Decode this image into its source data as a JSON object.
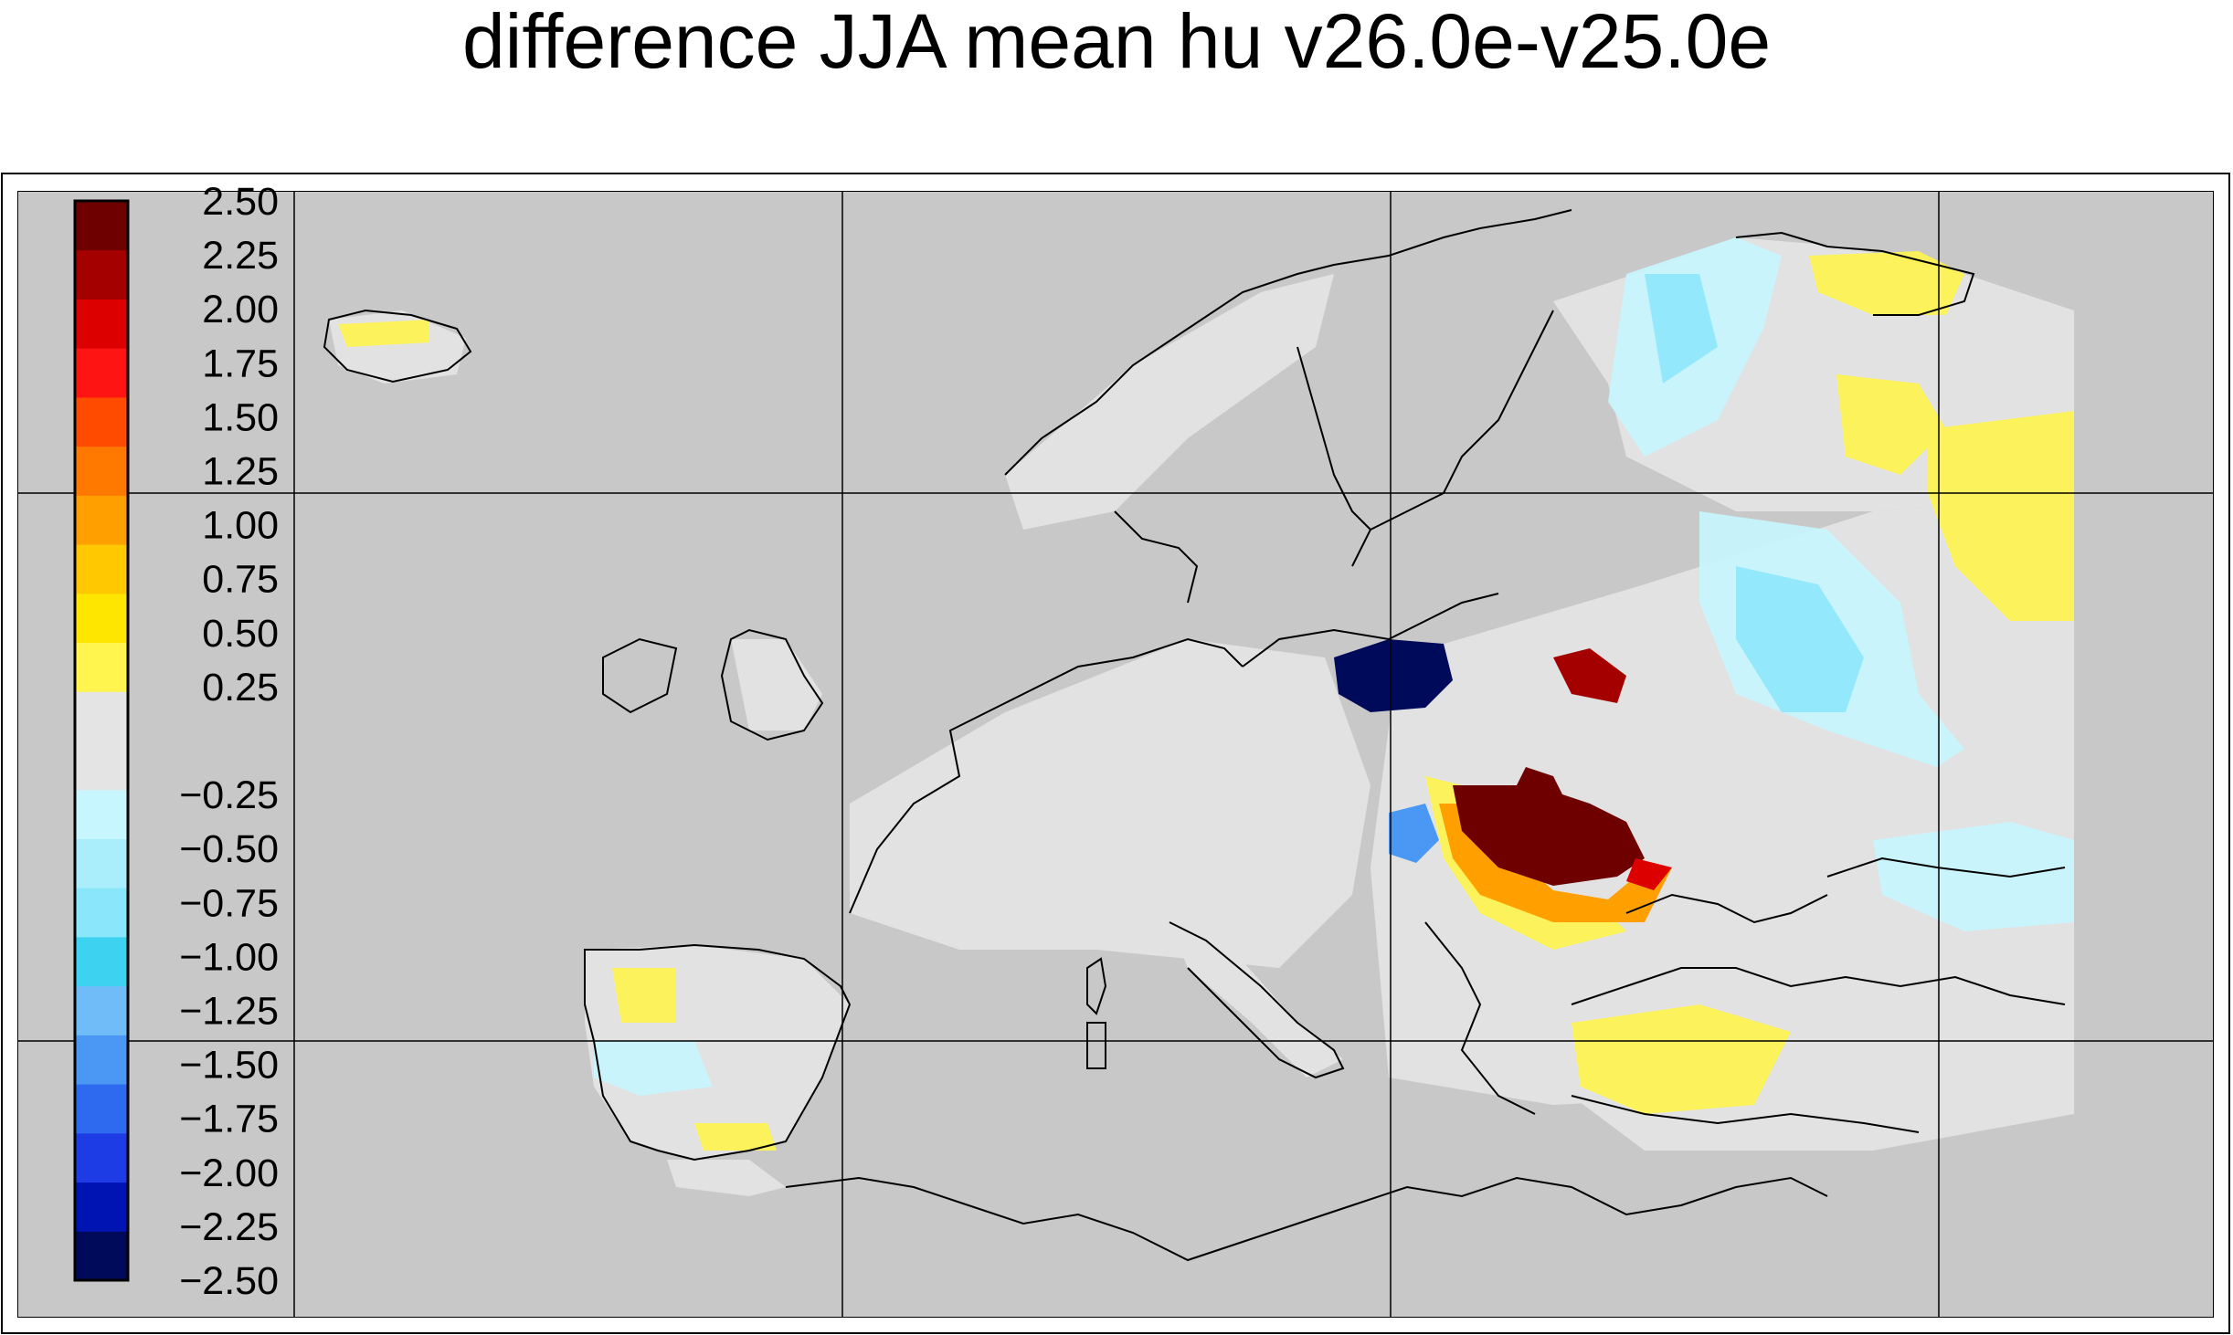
{
  "title": "difference JJA mean hu v26.0e-v25.0e",
  "colorbar": {
    "colors": [
      "#000a5a",
      "#0014b4",
      "#1e3ce6",
      "#2e6af0",
      "#4a98f4",
      "#70bcf8",
      "#3cd2f0",
      "#8ae6fa",
      "#aaeefc",
      "#c8f6fe",
      "#e4e4e4",
      "#e4e4e4",
      "#fff54e",
      "#ffe600",
      "#ffc800",
      "#ffa000",
      "#ff7800",
      "#ff4b00",
      "#ff1414",
      "#dc0000",
      "#a50000",
      "#6e0000"
    ],
    "labels": [
      "-2.50",
      "-2.25",
      "-2.00",
      "-1.75",
      "-1.50",
      "-1.25",
      "-1.00",
      "-0.75",
      "-0.50",
      "-0.25",
      "",
      "0.25",
      "0.50",
      "0.75",
      "1.00",
      "1.25",
      "1.50",
      "1.75",
      "2.00",
      "2.25",
      "2.50"
    ],
    "display_labels": [
      "−2.50",
      "−2.25",
      "−2.00",
      "−1.75",
      "−1.50",
      "−1.25",
      "−1.00",
      "−0.75",
      "−0.50",
      "−0.25",
      "",
      "0.25",
      "0.50",
      "0.75",
      "1.00",
      "1.25",
      "1.50",
      "1.75",
      "2.00",
      "2.25",
      "2.50"
    ]
  },
  "map": {
    "background_color": "#c8c8c8",
    "land_fill": "#e2e2e2"
  }
}
